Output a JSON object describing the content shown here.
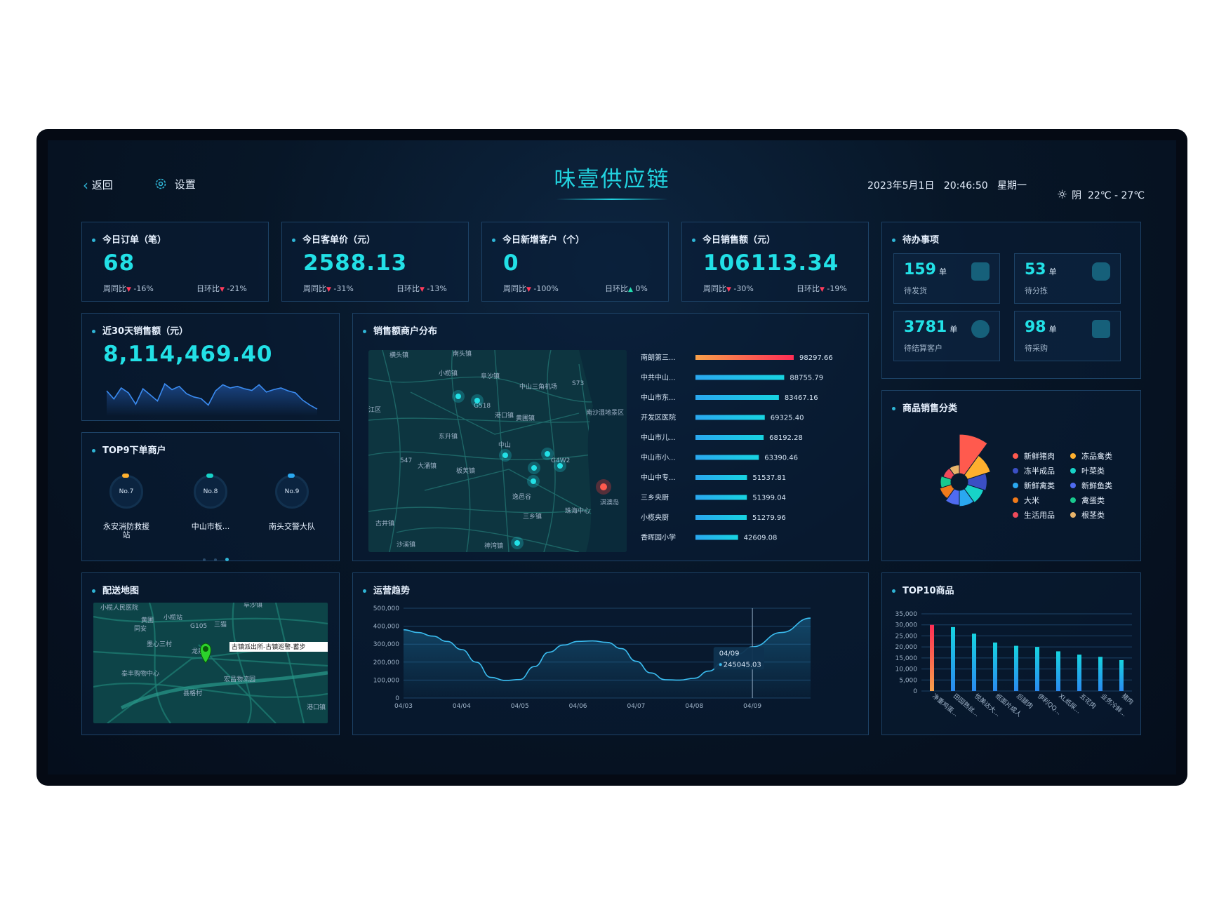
{
  "header": {
    "back_label": "返回",
    "settings_label": "设置",
    "title": "味壹供应链",
    "datetime": "2023年5月1日   20:46:50   星期一",
    "weather": "阴  22℃ - 27℃"
  },
  "kpis": [
    {
      "label": "今日订单（笔）",
      "value": "68",
      "wow_label": "周同比",
      "wow": "-16%",
      "wow_dir": "down",
      "dod_label": "日环比",
      "dod": "-21%",
      "dod_dir": "down"
    },
    {
      "label": "今日客单价（元）",
      "value": "2588.13",
      "wow_label": "周同比",
      "wow": "-31%",
      "wow_dir": "down",
      "dod_label": "日环比",
      "dod": "-13%",
      "dod_dir": "down"
    },
    {
      "label": "今日新增客户（个）",
      "value": "0",
      "wow_label": "周同比",
      "wow": "-100%",
      "wow_dir": "down",
      "dod_label": "日环比",
      "dod": "0%",
      "dod_dir": "up"
    },
    {
      "label": "今日销售额（元）",
      "value": "106113.34",
      "wow_label": "周同比",
      "wow": "-30%",
      "wow_dir": "down",
      "dod_label": "日环比",
      "dod": "-19%",
      "dod_dir": "down"
    }
  ],
  "todo": {
    "title": "待办事项",
    "items": [
      {
        "value": "159",
        "unit": "单",
        "label": "待发货"
      },
      {
        "value": "53",
        "unit": "单",
        "label": "待分拣"
      },
      {
        "value": "3781",
        "unit": "单",
        "label": "待结算客户"
      },
      {
        "value": "98",
        "unit": "单",
        "label": "待采购"
      }
    ]
  },
  "sales30": {
    "title": "近30天销售额（元）",
    "value": "8,114,469.40",
    "trend": [
      0.55,
      0.35,
      0.62,
      0.5,
      0.22,
      0.6,
      0.45,
      0.3,
      0.72,
      0.58,
      0.66,
      0.48,
      0.4,
      0.36,
      0.2,
      0.55,
      0.7,
      0.62,
      0.66,
      0.6,
      0.56,
      0.7,
      0.52,
      0.58,
      0.62,
      0.55,
      0.5,
      0.32,
      0.2,
      0.1
    ]
  },
  "merchant_dist": {
    "title": "销售额商户分布",
    "map_places": [
      "横头镇",
      "南头镇",
      "小榄镇",
      "阜沙镇",
      "中山三角机场",
      "江区",
      "黄圃镇",
      "G518",
      "港口镇",
      "南沙湿地景区",
      "东升镇",
      "中山",
      "547",
      "大涌镇",
      "G4W2",
      "S73",
      "逸邑谷",
      "三乡镇",
      "板芙镇",
      "珠海中心",
      "古井镇",
      "沙溪镇",
      "神湾镇",
      "淇澳岛"
    ]
  },
  "top9": {
    "title": "TOP9下单商户",
    "items": [
      {
        "rank": "No.7",
        "name": "永安消防救援站"
      },
      {
        "rank": "No.8",
        "name": "中山市板..."
      },
      {
        "rank": "No.9",
        "name": "南头交警大队"
      }
    ]
  },
  "category": {
    "title": "商品销售分类",
    "legend": [
      {
        "name": "新鲜猪肉",
        "color": "#ff5a4e"
      },
      {
        "name": "冻品禽类",
        "color": "#ffb02e"
      },
      {
        "name": "冻半成品",
        "color": "#3b4fc4"
      },
      {
        "name": "叶菜类",
        "color": "#17d3c8"
      },
      {
        "name": "新鲜禽类",
        "color": "#2aa8f0"
      },
      {
        "name": "新鲜鱼类",
        "color": "#4f6bf0"
      },
      {
        "name": "大米",
        "color": "#f07a1a"
      },
      {
        "name": "禽蛋类",
        "color": "#19c98e"
      },
      {
        "name": "生活用品",
        "color": "#f04a5a"
      },
      {
        "name": "根茎类",
        "color": "#e8b46a"
      }
    ]
  },
  "delivery_map": {
    "title": "配送地图",
    "places": [
      "小榄人民医院",
      "小榄站",
      "G105",
      "三猫",
      "阜沙镇",
      "同安",
      "黄圃",
      "墨心三村",
      "龙泉",
      "泰丰购物中心",
      "宏昌物流园",
      "县格村",
      "港口镇"
    ],
    "callout": "古镇派出所-古镇巡警-蓄步"
  },
  "colors": {
    "accent": "#22e0e6",
    "panel_border": "#1d4266",
    "down": "#ff3b5c",
    "up": "#22e0b0"
  },
  "chart_data": [
    {
      "type": "bar",
      "title": "销售额商户分布",
      "orientation": "horizontal",
      "categories": [
        "南朗第三...",
        "中共中山...",
        "中山市东...",
        "开发区医院",
        "中山市儿...",
        "中山市小...",
        "中山中专...",
        "三乡央厨",
        "小榄央厨",
        "香晖园小学"
      ],
      "values": [
        98297.66,
        88755.79,
        83467.16,
        69325.4,
        68192.28,
        63390.46,
        51537.81,
        51399.04,
        51279.96,
        42609.08
      ],
      "value_labels": [
        "98297.66",
        "88755.79",
        "83467.16",
        "69325.40",
        "68192.28",
        "63390.46",
        "51537.81",
        "51399.04",
        "51279.96",
        "42609.08"
      ]
    },
    {
      "type": "pie",
      "title": "商品销售分类",
      "categories": [
        "新鲜猪肉",
        "冻品禽类",
        "冻半成品",
        "叶菜类",
        "新鲜禽类",
        "新鲜鱼类",
        "大米",
        "禽蛋类",
        "生活用品",
        "根茎类"
      ],
      "values": [
        42,
        16,
        10,
        8,
        7,
        6,
        4,
        3,
        2,
        2
      ]
    },
    {
      "type": "area",
      "title": "运营趋势",
      "x": [
        "04/03",
        "04/04",
        "04/05",
        "04/06",
        "04/07",
        "04/08",
        "04/09"
      ],
      "x_points": [
        0,
        0.25,
        0.5,
        0.75,
        1,
        1.25,
        1.5,
        1.75,
        2,
        2.25,
        2.5,
        2.75,
        3,
        3.25,
        3.5,
        3.75,
        4,
        4.25,
        4.5,
        4.75,
        5,
        5.25,
        5.5,
        5.75,
        6,
        6.5,
        7
      ],
      "y_points": [
        380000,
        365000,
        345000,
        315000,
        270000,
        200000,
        115000,
        98000,
        103000,
        175000,
        255000,
        295000,
        315000,
        318000,
        310000,
        275000,
        205000,
        140000,
        102000,
        100000,
        110000,
        150000,
        200000,
        245045,
        285000,
        365000,
        445000
      ],
      "ylim": [
        0,
        500000
      ],
      "yticks": [
        "0",
        "100,000",
        "200,000",
        "300,000",
        "400,000",
        "500,000"
      ],
      "tooltip": {
        "label": "04/09",
        "value": "245045.03"
      }
    },
    {
      "type": "bar",
      "title": "TOP10商品",
      "categories": [
        "净重鸡蛋...",
        "田园熟丝...",
        "悦美达大...",
        "纸面片成人",
        "后腿肉",
        "伊利QQ...",
        "XL纸尿...",
        "五花肉",
        "业务冷鲜...",
        "猪肉"
      ],
      "values": [
        30000,
        29000,
        26000,
        22000,
        20500,
        20000,
        18000,
        16500,
        15500,
        14000
      ],
      "ylim": [
        0,
        35000
      ],
      "yticks": [
        "0",
        "5,000",
        "10,000",
        "15,000",
        "20,000",
        "25,000",
        "30,000",
        "35,000"
      ]
    }
  ]
}
